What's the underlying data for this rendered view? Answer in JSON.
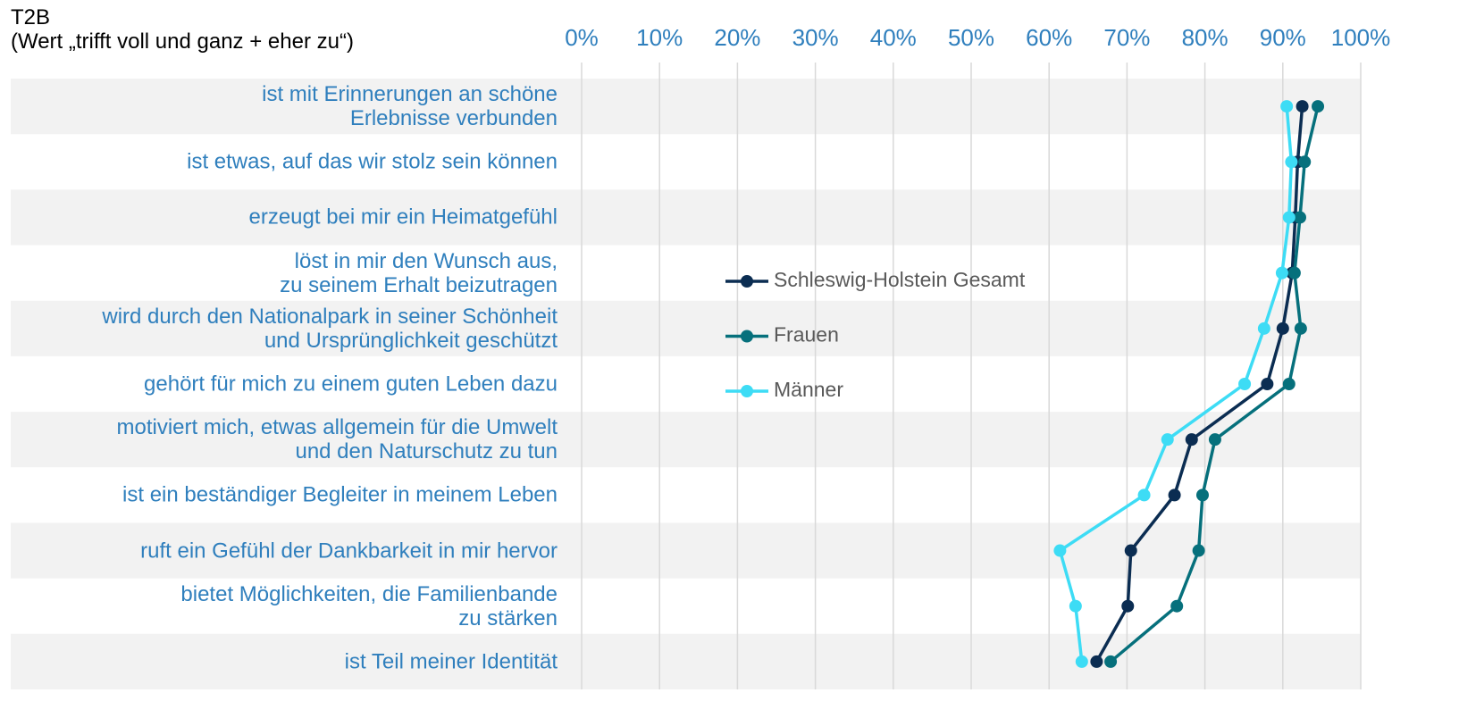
{
  "chart_data": {
    "type": "line",
    "orientation": "horizontal",
    "title": "T2B",
    "subtitle": "(Wert „trifft voll und ganz + eher zu“)",
    "categories": [
      "ist mit Erinnerungen an schöne\nErlebnisse verbunden",
      "ist etwas, auf das wir stolz sein können",
      "erzeugt bei mir ein Heimatgefühl",
      "löst in mir den Wunsch aus,\nzu seinem Erhalt beizutragen",
      "wird durch den Nationalpark in seiner Schönheit\nund Ursprünglichkeit geschützt",
      "gehört für mich zu einem guten Leben dazu",
      "motiviert mich, etwas allgemein für die Umwelt\nund den Naturschutz zu tun",
      "ist ein beständiger Begleiter in meinem Leben",
      "ruft ein Gefühl der Dankbarkeit in mir hervor",
      "bietet Möglichkeiten, die Familienbande\nzu stärken",
      "ist Teil meiner Identität"
    ],
    "series": [
      {
        "name": "Schleswig-Holstein Gesamt",
        "color": "#0b2d52",
        "values": [
          92.5,
          91.9,
          91.6,
          91.2,
          90.0,
          88.0,
          78.3,
          76.1,
          70.5,
          70.1,
          66.1
        ]
      },
      {
        "name": "Frauen",
        "color": "#06707c",
        "values": [
          94.5,
          92.8,
          92.2,
          91.5,
          92.3,
          90.8,
          81.3,
          79.7,
          79.2,
          76.4,
          67.9
        ]
      },
      {
        "name": "Männer",
        "color": "#3ddcf5",
        "values": [
          90.5,
          91.1,
          90.8,
          89.9,
          87.6,
          85.1,
          75.2,
          72.2,
          61.4,
          63.4,
          64.2
        ]
      }
    ],
    "xlim": [
      0,
      100
    ],
    "xticks": [
      {
        "value": 0,
        "label": "0%"
      },
      {
        "value": 10,
        "label": "10%"
      },
      {
        "value": 20,
        "label": "20%"
      },
      {
        "value": 30,
        "label": "30%"
      },
      {
        "value": 40,
        "label": "40%"
      },
      {
        "value": 50,
        "label": "50%"
      },
      {
        "value": 60,
        "label": "60%"
      },
      {
        "value": 70,
        "label": "70%"
      },
      {
        "value": 80,
        "label": "80%"
      },
      {
        "value": 90,
        "label": "90%"
      },
      {
        "value": 100,
        "label": "100%"
      }
    ],
    "grid": true
  }
}
